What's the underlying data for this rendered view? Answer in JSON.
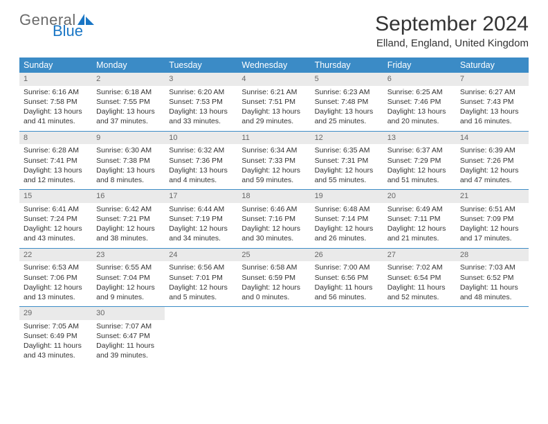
{
  "logo": {
    "word1": "General",
    "word2": "Blue"
  },
  "title": "September 2024",
  "location": "Elland, England, United Kingdom",
  "colors": {
    "header_bg": "#3b8bc6",
    "header_text": "#ffffff",
    "date_row_bg": "#eaeaea",
    "date_text": "#666666",
    "body_text": "#333333",
    "logo_gray": "#6a6a6a",
    "logo_blue": "#1976c5",
    "border": "#3b8bc6"
  },
  "day_names": [
    "Sunday",
    "Monday",
    "Tuesday",
    "Wednesday",
    "Thursday",
    "Friday",
    "Saturday"
  ],
  "days": [
    {
      "date": "1",
      "sunrise": "Sunrise: 6:16 AM",
      "sunset": "Sunset: 7:58 PM",
      "daylight": "Daylight: 13 hours and 41 minutes."
    },
    {
      "date": "2",
      "sunrise": "Sunrise: 6:18 AM",
      "sunset": "Sunset: 7:55 PM",
      "daylight": "Daylight: 13 hours and 37 minutes."
    },
    {
      "date": "3",
      "sunrise": "Sunrise: 6:20 AM",
      "sunset": "Sunset: 7:53 PM",
      "daylight": "Daylight: 13 hours and 33 minutes."
    },
    {
      "date": "4",
      "sunrise": "Sunrise: 6:21 AM",
      "sunset": "Sunset: 7:51 PM",
      "daylight": "Daylight: 13 hours and 29 minutes."
    },
    {
      "date": "5",
      "sunrise": "Sunrise: 6:23 AM",
      "sunset": "Sunset: 7:48 PM",
      "daylight": "Daylight: 13 hours and 25 minutes."
    },
    {
      "date": "6",
      "sunrise": "Sunrise: 6:25 AM",
      "sunset": "Sunset: 7:46 PM",
      "daylight": "Daylight: 13 hours and 20 minutes."
    },
    {
      "date": "7",
      "sunrise": "Sunrise: 6:27 AM",
      "sunset": "Sunset: 7:43 PM",
      "daylight": "Daylight: 13 hours and 16 minutes."
    },
    {
      "date": "8",
      "sunrise": "Sunrise: 6:28 AM",
      "sunset": "Sunset: 7:41 PM",
      "daylight": "Daylight: 13 hours and 12 minutes."
    },
    {
      "date": "9",
      "sunrise": "Sunrise: 6:30 AM",
      "sunset": "Sunset: 7:38 PM",
      "daylight": "Daylight: 13 hours and 8 minutes."
    },
    {
      "date": "10",
      "sunrise": "Sunrise: 6:32 AM",
      "sunset": "Sunset: 7:36 PM",
      "daylight": "Daylight: 13 hours and 4 minutes."
    },
    {
      "date": "11",
      "sunrise": "Sunrise: 6:34 AM",
      "sunset": "Sunset: 7:33 PM",
      "daylight": "Daylight: 12 hours and 59 minutes."
    },
    {
      "date": "12",
      "sunrise": "Sunrise: 6:35 AM",
      "sunset": "Sunset: 7:31 PM",
      "daylight": "Daylight: 12 hours and 55 minutes."
    },
    {
      "date": "13",
      "sunrise": "Sunrise: 6:37 AM",
      "sunset": "Sunset: 7:29 PM",
      "daylight": "Daylight: 12 hours and 51 minutes."
    },
    {
      "date": "14",
      "sunrise": "Sunrise: 6:39 AM",
      "sunset": "Sunset: 7:26 PM",
      "daylight": "Daylight: 12 hours and 47 minutes."
    },
    {
      "date": "15",
      "sunrise": "Sunrise: 6:41 AM",
      "sunset": "Sunset: 7:24 PM",
      "daylight": "Daylight: 12 hours and 43 minutes."
    },
    {
      "date": "16",
      "sunrise": "Sunrise: 6:42 AM",
      "sunset": "Sunset: 7:21 PM",
      "daylight": "Daylight: 12 hours and 38 minutes."
    },
    {
      "date": "17",
      "sunrise": "Sunrise: 6:44 AM",
      "sunset": "Sunset: 7:19 PM",
      "daylight": "Daylight: 12 hours and 34 minutes."
    },
    {
      "date": "18",
      "sunrise": "Sunrise: 6:46 AM",
      "sunset": "Sunset: 7:16 PM",
      "daylight": "Daylight: 12 hours and 30 minutes."
    },
    {
      "date": "19",
      "sunrise": "Sunrise: 6:48 AM",
      "sunset": "Sunset: 7:14 PM",
      "daylight": "Daylight: 12 hours and 26 minutes."
    },
    {
      "date": "20",
      "sunrise": "Sunrise: 6:49 AM",
      "sunset": "Sunset: 7:11 PM",
      "daylight": "Daylight: 12 hours and 21 minutes."
    },
    {
      "date": "21",
      "sunrise": "Sunrise: 6:51 AM",
      "sunset": "Sunset: 7:09 PM",
      "daylight": "Daylight: 12 hours and 17 minutes."
    },
    {
      "date": "22",
      "sunrise": "Sunrise: 6:53 AM",
      "sunset": "Sunset: 7:06 PM",
      "daylight": "Daylight: 12 hours and 13 minutes."
    },
    {
      "date": "23",
      "sunrise": "Sunrise: 6:55 AM",
      "sunset": "Sunset: 7:04 PM",
      "daylight": "Daylight: 12 hours and 9 minutes."
    },
    {
      "date": "24",
      "sunrise": "Sunrise: 6:56 AM",
      "sunset": "Sunset: 7:01 PM",
      "daylight": "Daylight: 12 hours and 5 minutes."
    },
    {
      "date": "25",
      "sunrise": "Sunrise: 6:58 AM",
      "sunset": "Sunset: 6:59 PM",
      "daylight": "Daylight: 12 hours and 0 minutes."
    },
    {
      "date": "26",
      "sunrise": "Sunrise: 7:00 AM",
      "sunset": "Sunset: 6:56 PM",
      "daylight": "Daylight: 11 hours and 56 minutes."
    },
    {
      "date": "27",
      "sunrise": "Sunrise: 7:02 AM",
      "sunset": "Sunset: 6:54 PM",
      "daylight": "Daylight: 11 hours and 52 minutes."
    },
    {
      "date": "28",
      "sunrise": "Sunrise: 7:03 AM",
      "sunset": "Sunset: 6:52 PM",
      "daylight": "Daylight: 11 hours and 48 minutes."
    },
    {
      "date": "29",
      "sunrise": "Sunrise: 7:05 AM",
      "sunset": "Sunset: 6:49 PM",
      "daylight": "Daylight: 11 hours and 43 minutes."
    },
    {
      "date": "30",
      "sunrise": "Sunrise: 7:07 AM",
      "sunset": "Sunset: 6:47 PM",
      "daylight": "Daylight: 11 hours and 39 minutes."
    }
  ]
}
